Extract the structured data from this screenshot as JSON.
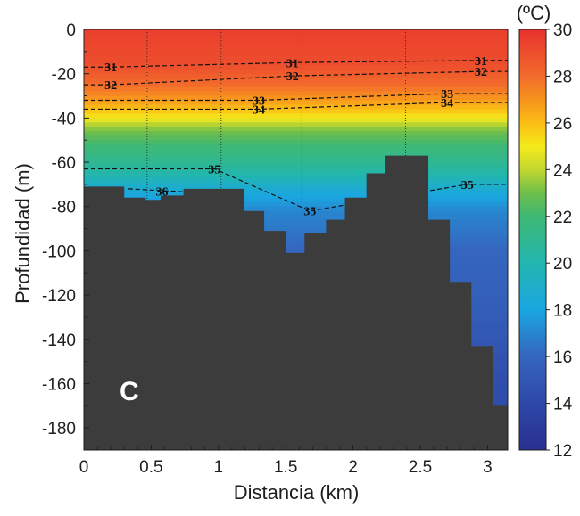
{
  "chart_data": {
    "type": "heatmap",
    "subtype": "filled-contour-section",
    "panel_label": "C",
    "xlabel": "Distancia (km)",
    "ylabel": "Profundidad (m)",
    "xlim": [
      0,
      3.15
    ],
    "ylim": [
      -190,
      0
    ],
    "x_ticks": [
      0,
      0.5,
      1,
      1.5,
      2,
      2.5,
      3
    ],
    "x_tick_labels": [
      "0",
      "0.5",
      "1",
      "1.5",
      "2",
      "2.5",
      "3"
    ],
    "y_ticks": [
      0,
      -20,
      -40,
      -60,
      -80,
      -100,
      -120,
      -140,
      -160,
      -180
    ],
    "y_tick_labels": [
      "0",
      "-20",
      "-40",
      "-60",
      "-80",
      "-100",
      "-120",
      "-140",
      "-160",
      "-180"
    ],
    "colorbar": {
      "unit": "(ºC)",
      "min": 12,
      "max": 30,
      "ticks": [
        12,
        14,
        16,
        18,
        20,
        22,
        24,
        26,
        28,
        30
      ],
      "tick_labels": [
        "12",
        "14",
        "16",
        "18",
        "20",
        "22",
        "24",
        "26",
        "28",
        "30"
      ],
      "stops": [
        {
          "value": 12,
          "color": "#29308f"
        },
        {
          "value": 14,
          "color": "#2e48a8"
        },
        {
          "value": 16,
          "color": "#3566bd"
        },
        {
          "value": 18,
          "color": "#1aa6e1"
        },
        {
          "value": 20,
          "color": "#22b6b0"
        },
        {
          "value": 22,
          "color": "#3fb873"
        },
        {
          "value": 23,
          "color": "#6dbe4a"
        },
        {
          "value": 24,
          "color": "#c3d730"
        },
        {
          "value": 25,
          "color": "#f4ea1a"
        },
        {
          "value": 26,
          "color": "#fbbd14"
        },
        {
          "value": 27,
          "color": "#f7931e"
        },
        {
          "value": 28,
          "color": "#f26b2c"
        },
        {
          "value": 30,
          "color": "#e8312e"
        }
      ]
    },
    "temperature_profile": [
      {
        "depth": 0,
        "temp": 29.5
      },
      {
        "depth": -16,
        "temp": 29.0
      },
      {
        "depth": -25,
        "temp": 28.0
      },
      {
        "depth": -31,
        "temp": 27.0
      },
      {
        "depth": -36,
        "temp": 26.0
      },
      {
        "depth": -40,
        "temp": 25.0
      },
      {
        "depth": -44,
        "temp": 23.5
      },
      {
        "depth": -52,
        "temp": 22.0
      },
      {
        "depth": -60,
        "temp": 21.0
      },
      {
        "depth": -66,
        "temp": 20.0
      },
      {
        "depth": -73,
        "temp": 18.5
      },
      {
        "depth": -82,
        "temp": 17.0
      },
      {
        "depth": -100,
        "temp": 16.0
      },
      {
        "depth": -125,
        "temp": 15.5
      },
      {
        "depth": -155,
        "temp": 14.5
      },
      {
        "depth": -190,
        "temp": 14.0
      }
    ],
    "bathymetry": [
      {
        "x": 0.0,
        "depth": -71
      },
      {
        "x": 0.3,
        "depth": -76
      },
      {
        "x": 0.46,
        "depth": -77
      },
      {
        "x": 0.57,
        "depth": -75
      },
      {
        "x": 0.74,
        "depth": -72
      },
      {
        "x": 1.19,
        "depth": -82
      },
      {
        "x": 1.34,
        "depth": -91
      },
      {
        "x": 1.5,
        "depth": -101
      },
      {
        "x": 1.64,
        "depth": -92
      },
      {
        "x": 1.8,
        "depth": -86
      },
      {
        "x": 1.94,
        "depth": -76
      },
      {
        "x": 2.1,
        "depth": -65
      },
      {
        "x": 2.24,
        "depth": -57
      },
      {
        "x": 2.4,
        "depth": -57
      },
      {
        "x": 2.56,
        "depth": -86
      },
      {
        "x": 2.72,
        "depth": -114
      },
      {
        "x": 2.88,
        "depth": -143
      },
      {
        "x": 3.04,
        "depth": -170
      },
      {
        "x": 3.15,
        "depth": -170
      }
    ],
    "stations_km": [
      0.47,
      1.02,
      1.62,
      2.39
    ],
    "isotherms": [
      {
        "value": 31,
        "label": "31",
        "label_positions": [
          {
            "x": 0.2,
            "depth": -17
          },
          {
            "x": 1.55,
            "depth": -15
          },
          {
            "x": 2.95,
            "depth": -14
          }
        ]
      },
      {
        "value": 32,
        "label": "32",
        "label_positions": [
          {
            "x": 0.2,
            "depth": -25
          },
          {
            "x": 1.55,
            "depth": -21
          },
          {
            "x": 2.95,
            "depth": -19
          }
        ]
      },
      {
        "value": 33,
        "label": "33",
        "label_positions": [
          {
            "x": 1.3,
            "depth": -32
          },
          {
            "x": 2.7,
            "depth": -29
          }
        ]
      },
      {
        "value": 34,
        "label": "34",
        "label_positions": [
          {
            "x": 1.3,
            "depth": -36
          },
          {
            "x": 2.7,
            "depth": -33
          }
        ]
      },
      {
        "value": 35,
        "label": "35",
        "label_positions": [
          {
            "x": 0.97,
            "depth": -63
          },
          {
            "x": 1.68,
            "depth": -82
          },
          {
            "x": 2.85,
            "depth": -70
          }
        ]
      },
      {
        "value": 36,
        "label": "36",
        "label_positions": [
          {
            "x": 0.58,
            "depth": -73
          }
        ]
      }
    ]
  }
}
